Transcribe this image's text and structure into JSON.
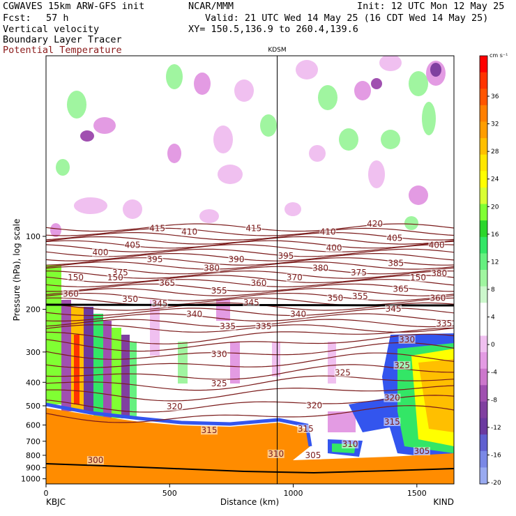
{
  "header": {
    "model": "CGWAVES 15km ARW-GFS init",
    "org": "NCAR/MMM",
    "init": "Init: 12 UTC Mon 12 May 25",
    "fcst_label": "Fcst:",
    "fcst_value": "57 h",
    "valid": "Valid: 21 UTC Wed 14 May 25 (16 CDT Wed 14 May 25)",
    "field1": "Vertical velocity",
    "xy": "XY= 150.5,136.9 to 260.4,139.6",
    "field2": "Boundary Layer Tracer",
    "field3": "Potential Temperature"
  },
  "colors": {
    "potential_temperature": "#7a1a1a",
    "boundary_layer": "#ff8c00",
    "terrain": "#000000"
  },
  "chart_data": {
    "type": "heatmap",
    "title": "",
    "xlabel": "Distance (km)",
    "ylabel": "Pressure (hPa), log scale",
    "xlim": [
      0,
      1650
    ],
    "ylim": [
      1050,
      18
    ],
    "y_scale": "log",
    "x_ticks": [
      "0",
      "500",
      "1000",
      "1500"
    ],
    "x_tick_values": [
      0,
      500,
      1000,
      1500
    ],
    "y_ticks": [
      "100",
      "200",
      "300",
      "400",
      "500",
      "600",
      "700",
      "800",
      "900",
      "1000"
    ],
    "y_tick_values": [
      100,
      200,
      300,
      400,
      500,
      600,
      700,
      800,
      900,
      1000
    ],
    "endpoints": {
      "left": "KBJC",
      "right": "KIND"
    },
    "marker": {
      "label": "KDSM",
      "x": 935
    },
    "colorbar": {
      "unit": "cm s⁻¹",
      "levels": [
        "36",
        "32",
        "28",
        "24",
        "20",
        "16",
        "12",
        "8",
        "4",
        "0",
        "-4",
        "-8",
        "-12",
        "-16",
        "-20"
      ],
      "colors": [
        "#ff0000",
        "#ff3300",
        "#ff5500",
        "#ff7f00",
        "#ff9d00",
        "#ffbf00",
        "#ffe600",
        "#ffff00",
        "#d9ff33",
        "#80ff33",
        "#2bd62b",
        "#33e666",
        "#66f080",
        "#a0f5a0",
        "#ccf7cc",
        "#ffffff",
        "#ffffff",
        "#f0c0f0",
        "#e39be3",
        "#cc77cc",
        "#a050b0",
        "#8040a0",
        "#6b3aa0",
        "#6060d0",
        "#7a88e6",
        "#99aaf0"
      ]
    },
    "theta_labels": [
      {
        "text": "415",
        "x": 450,
        "p": 94
      },
      {
        "text": "415",
        "x": 840,
        "p": 94
      },
      {
        "text": "420",
        "x": 1330,
        "p": 90
      },
      {
        "text": "410",
        "x": 580,
        "p": 97
      },
      {
        "text": "410",
        "x": 1140,
        "p": 97
      },
      {
        "text": "405",
        "x": 350,
        "p": 110
      },
      {
        "text": "405",
        "x": 1410,
        "p": 103
      },
      {
        "text": "400",
        "x": 220,
        "p": 118
      },
      {
        "text": "400",
        "x": 1165,
        "p": 113
      },
      {
        "text": "400",
        "x": 1580,
        "p": 110
      },
      {
        "text": "395",
        "x": 440,
        "p": 126
      },
      {
        "text": "395",
        "x": 970,
        "p": 122
      },
      {
        "text": "390",
        "x": 770,
        "p": 126
      },
      {
        "text": "385",
        "x": 1415,
        "p": 131
      },
      {
        "text": "380",
        "x": 670,
        "p": 137
      },
      {
        "text": "380",
        "x": 1110,
        "p": 137
      },
      {
        "text": "380",
        "x": 1590,
        "p": 144
      },
      {
        "text": "375",
        "x": 300,
        "p": 143
      },
      {
        "text": "375",
        "x": 1265,
        "p": 143
      },
      {
        "text": "370",
        "x": 1005,
        "p": 150
      },
      {
        "text": "365",
        "x": 490,
        "p": 158
      },
      {
        "text": "365",
        "x": 1435,
        "p": 167
      },
      {
        "text": "360",
        "x": 860,
        "p": 158
      },
      {
        "text": "360",
        "x": 100,
        "p": 175
      },
      {
        "text": "360",
        "x": 1585,
        "p": 182
      },
      {
        "text": "355",
        "x": 700,
        "p": 170
      },
      {
        "text": "355",
        "x": 1270,
        "p": 179
      },
      {
        "text": "350",
        "x": 340,
        "p": 184
      },
      {
        "text": "350",
        "x": 1170,
        "p": 182
      },
      {
        "text": "345",
        "x": 460,
        "p": 192
      },
      {
        "text": "345",
        "x": 830,
        "p": 190
      },
      {
        "text": "345",
        "x": 1405,
        "p": 202
      },
      {
        "text": "340",
        "x": 600,
        "p": 212
      },
      {
        "text": "340",
        "x": 1020,
        "p": 212
      },
      {
        "text": "335",
        "x": 735,
        "p": 238
      },
      {
        "text": "335",
        "x": 880,
        "p": 238
      },
      {
        "text": "335",
        "x": 1610,
        "p": 232
      },
      {
        "text": "330",
        "x": 700,
        "p": 310
      },
      {
        "text": "330",
        "x": 1460,
        "p": 270
      },
      {
        "text": "325",
        "x": 700,
        "p": 410
      },
      {
        "text": "325",
        "x": 1200,
        "p": 370
      },
      {
        "text": "325",
        "x": 1440,
        "p": 345
      },
      {
        "text": "320",
        "x": 520,
        "p": 510
      },
      {
        "text": "320",
        "x": 1085,
        "p": 505
      },
      {
        "text": "320",
        "x": 1400,
        "p": 470
      },
      {
        "text": "315",
        "x": 660,
        "p": 640
      },
      {
        "text": "315",
        "x": 1050,
        "p": 630
      },
      {
        "text": "315",
        "x": 1400,
        "p": 590
      },
      {
        "text": "310",
        "x": 930,
        "p": 800
      },
      {
        "text": "310",
        "x": 1230,
        "p": 730
      },
      {
        "text": "305",
        "x": 1080,
        "p": 810
      },
      {
        "text": "305",
        "x": 1520,
        "p": 780
      },
      {
        "text": "300",
        "x": 200,
        "p": 850
      },
      {
        "text": "150",
        "x": 120,
        "p": 150
      },
      {
        "text": "150",
        "x": 280,
        "p": 150
      },
      {
        "text": "150",
        "x": 1505,
        "p": 150
      }
    ]
  }
}
